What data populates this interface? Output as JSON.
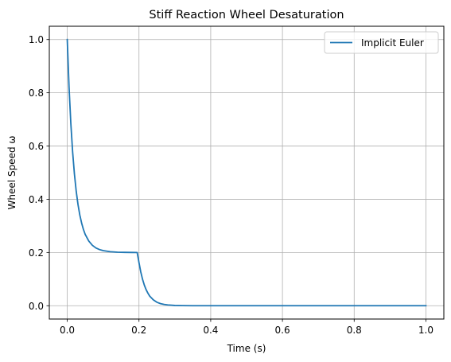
{
  "chart_data": {
    "type": "line",
    "title": "Stiff Reaction Wheel Desaturation",
    "xlabel": "Time (s)",
    "ylabel": "Wheel Speed ω",
    "xlim": [
      -0.05,
      1.05
    ],
    "ylim": [
      -0.05,
      1.05
    ],
    "xticks": [
      0.0,
      0.2,
      0.4,
      0.6,
      0.8,
      1.0
    ],
    "xtick_labels": [
      "0.0",
      "0.2",
      "0.4",
      "0.6",
      "0.8",
      "1.0"
    ],
    "yticks": [
      0.0,
      0.2,
      0.4,
      0.6,
      0.8,
      1.0
    ],
    "ytick_labels": [
      "0.0",
      "0.2",
      "0.4",
      "0.6",
      "0.8",
      "1.0"
    ],
    "grid": true,
    "legend_position": "top-right",
    "series": [
      {
        "name": "Implicit Euler",
        "color": "#1f77b4",
        "x": [
          0.0,
          0.005,
          0.01,
          0.015,
          0.02,
          0.025,
          0.03,
          0.035,
          0.04,
          0.045,
          0.05,
          0.06,
          0.07,
          0.08,
          0.09,
          0.1,
          0.12,
          0.14,
          0.16,
          0.18,
          0.195,
          0.2,
          0.205,
          0.21,
          0.215,
          0.22,
          0.225,
          0.23,
          0.24,
          0.25,
          0.26,
          0.27,
          0.28,
          0.3,
          0.32,
          0.35,
          0.4,
          0.5,
          0.6,
          0.7,
          0.8,
          0.9,
          1.0
        ],
        "y": [
          1.0,
          0.822,
          0.685,
          0.578,
          0.495,
          0.43,
          0.38,
          0.341,
          0.311,
          0.287,
          0.268,
          0.243,
          0.227,
          0.217,
          0.211,
          0.207,
          0.203,
          0.201,
          0.2005,
          0.2002,
          0.2,
          0.162,
          0.127,
          0.099,
          0.077,
          0.06,
          0.047,
          0.036,
          0.022,
          0.013,
          0.008,
          0.005,
          0.003,
          0.001,
          0.0004,
          0.0001,
          0.0,
          0.0,
          0.0,
          0.0,
          0.0,
          0.0,
          0.0
        ]
      }
    ]
  }
}
